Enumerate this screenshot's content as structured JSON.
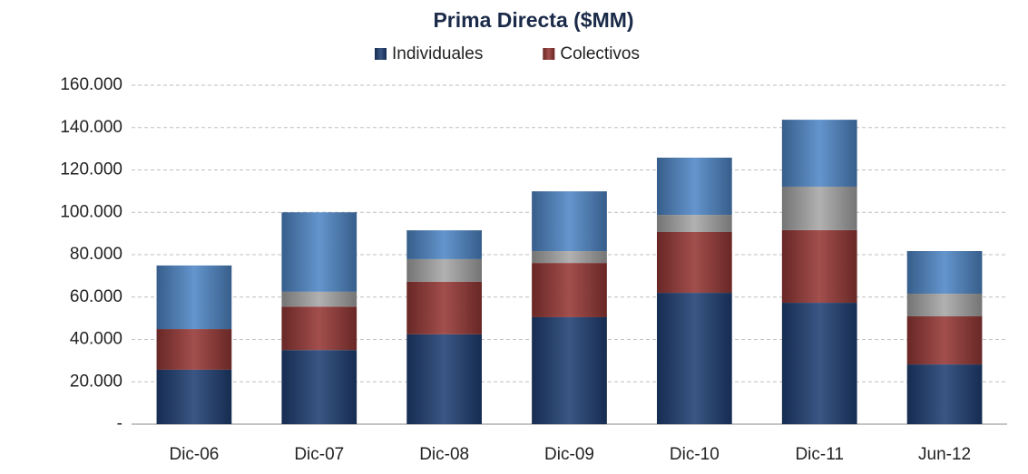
{
  "chart_data": {
    "type": "stacked-bar",
    "title": "Prima Directa ($MM)",
    "categories": [
      "Dic-06",
      "Dic-07",
      "Dic-08",
      "Dic-09",
      "Dic-10",
      "Dic-11",
      "Jun-12"
    ],
    "series": [
      {
        "name": "Individuales",
        "color": "#1f3f73",
        "values": [
          25700,
          35000,
          42400,
          50500,
          62000,
          57300,
          28200
        ]
      },
      {
        "name": "Colectivos",
        "color": "#953735",
        "values": [
          19200,
          20500,
          24800,
          25600,
          28700,
          34300,
          22700
        ]
      },
      {
        "color": "#a6a6a6",
        "values": [
          0,
          7000,
          10700,
          5600,
          8100,
          20500,
          10700
        ]
      },
      {
        "color": "#4f86c6",
        "values": [
          30000,
          37500,
          13600,
          28200,
          27000,
          31600,
          20100
        ]
      }
    ],
    "ylim": [
      0,
      160000
    ],
    "yticks": [
      {
        "value": 0,
        "label": "-"
      },
      {
        "value": 20000,
        "label": "20.000"
      },
      {
        "value": 40000,
        "label": "40.000"
      },
      {
        "value": 60000,
        "label": "60.000"
      },
      {
        "value": 80000,
        "label": "80.000"
      },
      {
        "value": 100000,
        "label": "100.000"
      },
      {
        "value": 120000,
        "label": "120.000"
      },
      {
        "value": 140000,
        "label": "140.000"
      },
      {
        "value": 160000,
        "label": "160.000"
      }
    ],
    "grid": true
  }
}
